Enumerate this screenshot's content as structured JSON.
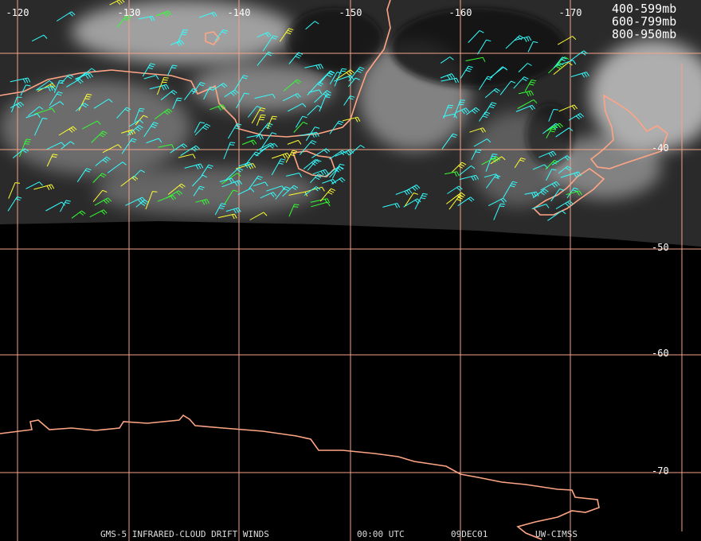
{
  "longitude_labels": [
    "-120",
    "-130",
    "-140",
    "-150",
    "-160",
    "-170"
  ],
  "latitude_labels": [
    "-40",
    "-50",
    "-60",
    "-70"
  ],
  "legend": [
    {
      "label": "400-599mb",
      "color": "#33ff33"
    },
    {
      "label": "600-799mb",
      "color": "#ffff33"
    },
    {
      "label": "800-950mb",
      "color": "#33ffff"
    }
  ],
  "footer": {
    "product": "GMS-5 INFRARED-CLOUD DRIFT WINDS",
    "time": "00:00 UTC",
    "date": "09DEC01",
    "source": "UW-CIMSS"
  }
}
